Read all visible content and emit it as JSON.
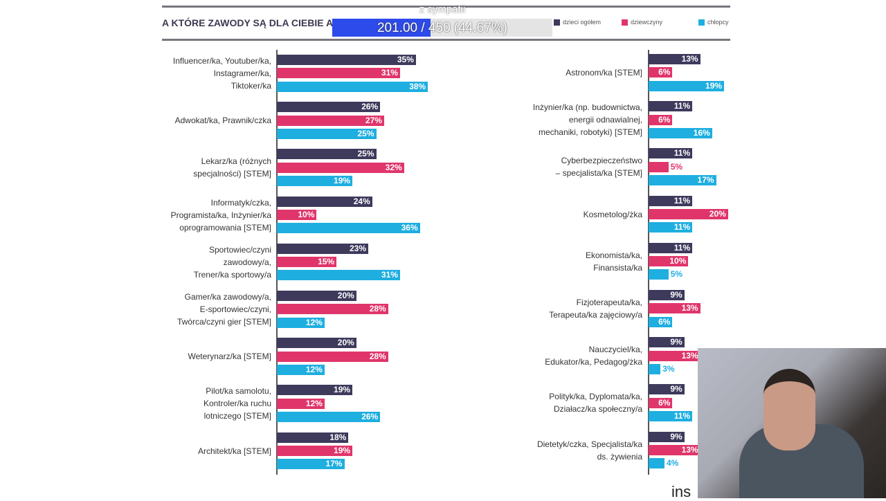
{
  "header": {
    "title": "A KTÓRE ZAWODY SĄ DLA CIEBIE AT"
  },
  "overlay": {
    "goal_subtitle": "z sympatii",
    "progress_text": "201.00 / 450 (44.67%)",
    "progress_value": 201,
    "progress_max": 450,
    "progress_percent": 44.67,
    "bar_color": "#2d4bea"
  },
  "corner_text": "ins",
  "chart_data": {
    "type": "bar",
    "orientation": "horizontal",
    "legend": [
      "dzieci ogółem",
      "dziewczyny",
      "chłopcy"
    ],
    "legend_placement": "top-right",
    "colors": [
      "#3d3a5c",
      "#e0356b",
      "#1eaee0"
    ],
    "unit": "%",
    "panels": [
      {
        "categories": [
          "Influencer/ka, Youtuber/ka,\nInstagramer/ka,\nTiktoker/ka",
          "Adwokat/ka, Prawnik/czka",
          "Lekarz/ka (różnych\nspecjalności) [STEM]",
          "Informatyk/czka,\nProgramista/ka, Inżynier/ka\noprogramowania [STEM]",
          "Sportowiec/czyni\nzawodowy/a,\nTrener/ka sportowy/a",
          "Gamer/ka zawodowy/a,\nE-sportowiec/czyni,\nTwórca/czyni gier [STEM]",
          "Weterynarz/ka [STEM]",
          "Pilot/ka samolotu,\nKontroler/ka ruchu\nlotniczego [STEM]",
          "Architekt/ka [STEM]"
        ],
        "series": [
          {
            "name": "dzieci ogółem",
            "values": [
              35,
              26,
              25,
              24,
              23,
              20,
              20,
              19,
              18
            ]
          },
          {
            "name": "dziewczyny",
            "values": [
              31,
              27,
              32,
              10,
              15,
              28,
              28,
              12,
              19
            ]
          },
          {
            "name": "chłopcy",
            "values": [
              38,
              25,
              19,
              36,
              31,
              12,
              12,
              26,
              17
            ]
          }
        ]
      },
      {
        "categories": [
          "Astronom/ka [STEM]",
          "Inżynier/ka (np. budownictwa,\nenergii odnawialnej,\nmechaniki, robotyki) [STEM]",
          "Cyberbezpieczeństwo\n– specjalista/ka [STEM]",
          "Kosmetolog/żka",
          "Ekonomista/ka,\nFinansista/ka",
          "Fizjoterapeuta/ka,\nTerapeuta/ka zajęciowy/a",
          "Nauczyciel/ka,\nEdukator/ka, Pedagog/żka",
          "Polityk/ka, Dyplomata/ka,\nDziałacz/ka społeczny/a",
          "Dietetyk/czka, Specjalista/ka\nds. żywienia"
        ],
        "series": [
          {
            "name": "dzieci ogółem",
            "values": [
              13,
              11,
              11,
              11,
              11,
              9,
              9,
              9,
              9
            ]
          },
          {
            "name": "dziewczyny",
            "values": [
              6,
              6,
              5,
              20,
              10,
              13,
              13,
              6,
              13
            ]
          },
          {
            "name": "chłopcy",
            "values": [
              19,
              16,
              17,
              11,
              5,
              6,
              3,
              11,
              4
            ]
          }
        ]
      }
    ]
  }
}
